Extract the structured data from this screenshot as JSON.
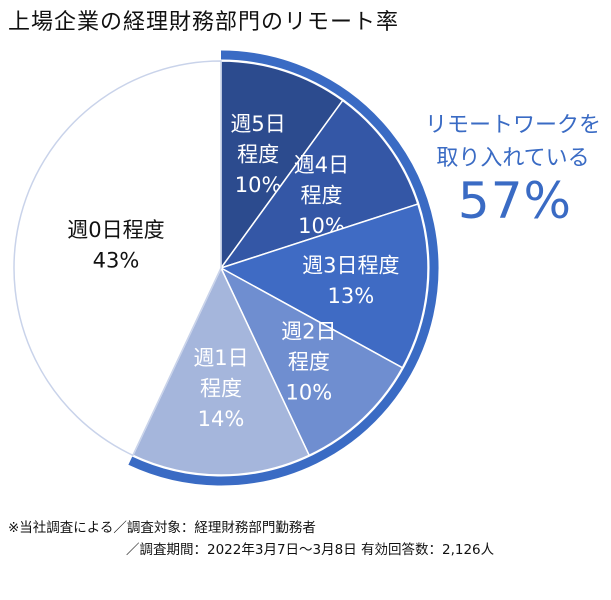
{
  "chart_data": {
    "type": "pie",
    "title": "上場企業の経理財務部門のリモート率",
    "slices": [
      {
        "label_lines": [
          "週5日",
          "程度",
          "10%"
        ],
        "value": 10,
        "color": "#2c4b8e",
        "text_color": "#ffffff"
      },
      {
        "label_lines": [
          "週4日",
          "程度",
          "10%"
        ],
        "value": 10,
        "color": "#3457a6",
        "text_color": "#ffffff"
      },
      {
        "label_lines": [
          "週3日程度",
          "13%"
        ],
        "value": 13,
        "color": "#3f6bc4",
        "text_color": "#ffffff"
      },
      {
        "label_lines": [
          "週2日",
          "程度",
          "10%"
        ],
        "value": 10,
        "color": "#6f8ed0",
        "text_color": "#ffffff"
      },
      {
        "label_lines": [
          "週1日",
          "程度",
          "14%"
        ],
        "value": 14,
        "color": "#a5b6dc",
        "text_color": "#ffffff"
      },
      {
        "label_lines": [
          "週0日程度",
          "43%"
        ],
        "value": 43,
        "color": "#ffffff",
        "text_color": "#111111"
      }
    ],
    "callout": {
      "line1": "リモートワークを",
      "line2": "取り入れている",
      "percent": "57%",
      "color": "#3a6bc4"
    }
  },
  "footnote": {
    "line1": "※当社調査による／調査対象：経理財務部門勤務者",
    "line2": "／調査期間：2022年3月7日～3月8日 有効回答数：2,126人"
  }
}
